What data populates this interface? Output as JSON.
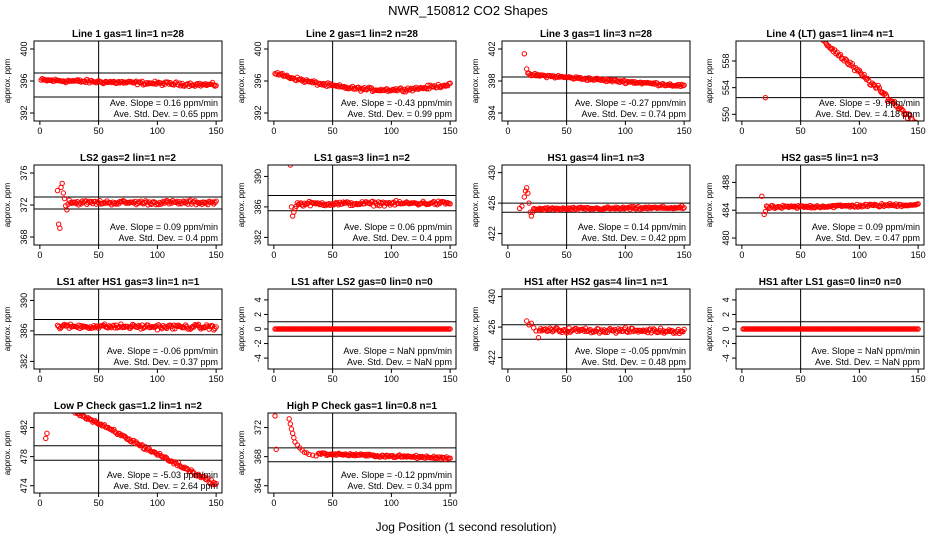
{
  "figure": {
    "title": "NWR_150812  CO2 Shapes",
    "xlabel": "Jog Position (1 second resolution)"
  },
  "style": {
    "point_color": "#ff0000",
    "line_color": "#000000"
  },
  "chart_data": [
    {
      "type": "scatter",
      "title": "Line 1 gas=1 lin=1 n=28",
      "ylabel": "approx. ppm",
      "xlim": [
        -5,
        155
      ],
      "xticks": [
        0,
        50,
        100,
        150
      ],
      "ylim": [
        391,
        401
      ],
      "yticks": [
        392,
        396,
        400
      ],
      "vline": 50,
      "hlines": [
        397.0,
        394.0
      ],
      "slope_text": "Ave. Slope =  0.16  ppm/min",
      "sd_text": "Ave. Std. Dev. =  0.65  ppm",
      "series": [
        {
          "shape": "flat",
          "x_start": 1,
          "x_end": 150,
          "step": 1,
          "y_start": 396.1,
          "y_end": 395.5,
          "noise": 0.25
        }
      ]
    },
    {
      "type": "scatter",
      "title": "Line 2 gas=1 lin=2 n=28",
      "ylabel": "approx. ppm",
      "xlim": [
        -5,
        155
      ],
      "xticks": [
        0,
        50,
        100,
        150
      ],
      "ylim": [
        391,
        401
      ],
      "yticks": [
        392,
        396,
        400
      ],
      "vline": 50,
      "hlines": [],
      "slope_text": "Ave. Slope =  -0.43  ppm/min",
      "sd_text": "Ave. Std. Dev. =  0.99  ppm",
      "series": [
        {
          "shape": "dip",
          "x_start": 1,
          "x_end": 150,
          "step": 1,
          "y_start": 397.0,
          "y_end": 395.6,
          "y_mid": 395.0,
          "noise": 0.25
        }
      ]
    },
    {
      "type": "scatter",
      "title": "Line 3 gas=1 lin=3 n=28",
      "ylabel": "approx. ppm",
      "xlim": [
        -5,
        155
      ],
      "xticks": [
        0,
        50,
        100,
        150
      ],
      "ylim": [
        393,
        403
      ],
      "yticks": [
        394,
        398,
        402
      ],
      "vline": 50,
      "hlines": [
        398.5,
        396.5
      ],
      "slope_text": "Ave. Slope =  -0.27  ppm/min",
      "sd_text": "Ave. Std. Dev. =  0.74  ppm",
      "series": [
        {
          "shape": "points",
          "x": [
            14,
            16
          ],
          "y": [
            401.4,
            399.5
          ]
        },
        {
          "shape": "flat",
          "x_start": 17,
          "x_end": 150,
          "step": 1,
          "y_start": 398.8,
          "y_end": 397.4,
          "noise": 0.2
        }
      ]
    },
    {
      "type": "scatter",
      "title": "Line 4 (LT) gas=1 lin=4 n=1",
      "ylabel": "approx. ppm",
      "xlim": [
        -5,
        155
      ],
      "xticks": [
        0,
        50,
        100,
        150
      ],
      "ylim": [
        549,
        561
      ],
      "yticks": [
        550,
        554,
        558
      ],
      "vline": 50,
      "hlines": [
        555.5,
        552.5
      ],
      "slope_text": "Ave. Slope =  -9.  ppm/min",
      "sd_text": "Ave. Std. Dev. =  4.18  ppm",
      "series": [
        {
          "shape": "points",
          "x": [
            20
          ],
          "y": [
            552.5
          ]
        },
        {
          "shape": "flat",
          "x_start": 68,
          "x_end": 150,
          "step": 1,
          "y_start": 561.2,
          "y_end": 548.5,
          "noise": 0.5
        }
      ]
    },
    {
      "type": "scatter",
      "title": "LS2 gas=2 lin=1 n=2",
      "ylabel": "approx. ppm",
      "xlim": [
        -5,
        155
      ],
      "xticks": [
        0,
        50,
        100,
        150
      ],
      "ylim": [
        367,
        377
      ],
      "yticks": [
        368,
        372,
        376
      ],
      "vline": 50,
      "hlines": [
        373.0,
        371.5
      ],
      "slope_text": "Ave. Slope =  0.09  ppm/min",
      "sd_text": "Ave. Std. Dev. =  0.4  ppm",
      "series": [
        {
          "shape": "points",
          "x": [
            15,
            16,
            17,
            18,
            19,
            20,
            21,
            22,
            23,
            24,
            25
          ],
          "y": [
            373.8,
            369.6,
            369.1,
            374.2,
            374.7,
            373.5,
            372.8,
            371.9,
            371.4,
            372.1,
            372.6
          ]
        },
        {
          "shape": "flat",
          "x_start": 26,
          "x_end": 150,
          "step": 1,
          "y_start": 372.3,
          "y_end": 372.3,
          "noise": 0.3
        }
      ]
    },
    {
      "type": "scatter",
      "title": "LS1 gas=3 lin=1 n=2",
      "ylabel": "approx. ppm",
      "xlim": [
        -5,
        155
      ],
      "xticks": [
        0,
        50,
        100,
        150
      ],
      "ylim": [
        381,
        391.5
      ],
      "yticks": [
        382,
        386,
        390
      ],
      "vline": 50,
      "hlines": [
        387.5,
        385.5
      ],
      "slope_text": "Ave. Slope =  0.06  ppm/min",
      "sd_text": "Ave. Std. Dev. =  0.4  ppm",
      "series": [
        {
          "shape": "points",
          "x": [
            14,
            15,
            16,
            17,
            18
          ],
          "y": [
            391.5,
            386.0,
            384.8,
            385.3,
            385.8
          ]
        },
        {
          "shape": "flat",
          "x_start": 19,
          "x_end": 150,
          "step": 1,
          "y_start": 386.4,
          "y_end": 386.5,
          "noise": 0.3
        }
      ]
    },
    {
      "type": "scatter",
      "title": "HS1 gas=4 lin=1 n=3",
      "ylabel": "approx. ppm",
      "xlim": [
        -5,
        155
      ],
      "xticks": [
        0,
        50,
        100,
        150
      ],
      "ylim": [
        420.5,
        431
      ],
      "yticks": [
        422,
        426,
        430
      ],
      "vline": 50,
      "hlines": [
        426.0,
        424.8
      ],
      "slope_text": "Ave. Slope =  0.14  ppm/min",
      "sd_text": "Ave. Std. Dev. =  0.42  ppm",
      "series": [
        {
          "shape": "points",
          "x": [
            10,
            12,
            14,
            15,
            16,
            17,
            18,
            19,
            20,
            21
          ],
          "y": [
            425.3,
            425.6,
            426.8,
            427.6,
            428.0,
            427.3,
            426.0,
            424.8,
            424.3,
            424.8
          ]
        },
        {
          "shape": "flat",
          "x_start": 22,
          "x_end": 150,
          "step": 1,
          "y_start": 425.2,
          "y_end": 425.4,
          "noise": 0.2
        }
      ]
    },
    {
      "type": "scatter",
      "title": "HS2 gas=5 lin=1 n=3",
      "ylabel": "approx. ppm",
      "xlim": [
        -5,
        155
      ],
      "xticks": [
        0,
        50,
        100,
        150
      ],
      "ylim": [
        479,
        490.5
      ],
      "yticks": [
        480,
        484,
        488
      ],
      "vline": 50,
      "hlines": [
        485.8,
        483.6
      ],
      "slope_text": "Ave. Slope =  0.09  ppm/min",
      "sd_text": "Ave. Std. Dev. =  0.47  ppm",
      "series": [
        {
          "shape": "points",
          "x": [
            17,
            19,
            20
          ],
          "y": [
            486.0,
            483.4,
            483.8
          ]
        },
        {
          "shape": "flat",
          "x_start": 21,
          "x_end": 150,
          "step": 1,
          "y_start": 484.4,
          "y_end": 484.8,
          "noise": 0.25
        }
      ]
    },
    {
      "type": "scatter",
      "title": "LS1 after HS1 gas=3 lin=1 n=1",
      "ylabel": "approx. ppm",
      "xlim": [
        -5,
        155
      ],
      "xticks": [
        0,
        50,
        100,
        150
      ],
      "ylim": [
        381,
        391.5
      ],
      "yticks": [
        382,
        386,
        390
      ],
      "vline": 50,
      "hlines": [
        387.5,
        385.5
      ],
      "slope_text": "Ave. Slope =  -0.06  ppm/min",
      "sd_text": "Ave. Std. Dev. =  0.37  ppm",
      "series": [
        {
          "shape": "flat",
          "x_start": 15,
          "x_end": 150,
          "step": 1,
          "y_start": 386.6,
          "y_end": 386.5,
          "noise": 0.35
        }
      ]
    },
    {
      "type": "scatter",
      "title": "LS1 after LS2 gas=0 lin=0 n=0",
      "ylabel": "approx. ppm",
      "xlim": [
        -5,
        155
      ],
      "xticks": [
        0,
        50,
        100,
        150
      ],
      "ylim": [
        -5.5,
        5.5
      ],
      "yticks": [
        -4,
        -2,
        0,
        2,
        4
      ],
      "vline": 50,
      "hlines": [
        1,
        -1
      ],
      "slope_text": "Ave. Slope =  NaN  ppm/min",
      "sd_text": "Ave. Std. Dev. =  NaN  ppm",
      "series": [
        {
          "shape": "flat",
          "x_start": 1,
          "x_end": 150,
          "step": 1,
          "y_start": 0,
          "y_end": 0,
          "noise": 0
        }
      ]
    },
    {
      "type": "scatter",
      "title": "HS1 after HS2 gas=4 lin=1 n=1",
      "ylabel": "approx. ppm",
      "xlim": [
        -5,
        155
      ],
      "xticks": [
        0,
        50,
        100,
        150
      ],
      "ylim": [
        420.5,
        431
      ],
      "yticks": [
        422,
        426,
        430
      ],
      "vline": 50,
      "hlines": [
        426.3,
        424.4
      ],
      "slope_text": "Ave. Slope =  -0.05  ppm/min",
      "sd_text": "Ave. Std. Dev. =  0.48  ppm",
      "series": [
        {
          "shape": "points",
          "x": [
            16,
            18,
            20,
            22,
            24,
            26
          ],
          "y": [
            426.8,
            426.3,
            426.5,
            425.9,
            425.5,
            424.6
          ]
        },
        {
          "shape": "flat",
          "x_start": 27,
          "x_end": 150,
          "step": 1,
          "y_start": 425.6,
          "y_end": 425.5,
          "noise": 0.35
        }
      ]
    },
    {
      "type": "scatter",
      "title": "HS1 after LS1 gas=0 lin=0 n=0",
      "ylabel": "approx. ppm",
      "xlim": [
        -5,
        155
      ],
      "xticks": [
        0,
        50,
        100,
        150
      ],
      "ylim": [
        -5.5,
        5.5
      ],
      "yticks": [
        -4,
        -2,
        0,
        2,
        4
      ],
      "vline": 50,
      "hlines": [
        1,
        -1
      ],
      "slope_text": "Ave. Slope =  NaN  ppm/min",
      "sd_text": "Ave. Std. Dev. =  NaN  ppm",
      "series": [
        {
          "shape": "flat",
          "x_start": 1,
          "x_end": 150,
          "step": 1,
          "y_start": 0,
          "y_end": 0,
          "noise": 0
        }
      ]
    },
    {
      "type": "scatter",
      "title": "Low P Check gas=1.2 lin=1 n=2",
      "ylabel": "approx. ppm",
      "xlim": [
        -5,
        155
      ],
      "xticks": [
        0,
        50,
        100,
        150
      ],
      "ylim": [
        473,
        484
      ],
      "yticks": [
        474,
        478,
        482
      ],
      "vline": 50,
      "hlines": [
        479.5,
        477.5
      ],
      "slope_text": "Ave. Slope =  -5.03  ppm/min",
      "sd_text": "Ave. Std. Dev. =  2.64  ppm",
      "series": [
        {
          "shape": "points",
          "x": [
            5,
            6
          ],
          "y": [
            480.5,
            481.2
          ]
        },
        {
          "shape": "flat",
          "x_start": 30,
          "x_end": 150,
          "step": 1,
          "y_start": 484.2,
          "y_end": 474.2,
          "noise": 0.3
        }
      ]
    },
    {
      "type": "scatter",
      "title": "High P Check gas=1 lin=0.8 n=1",
      "ylabel": "approx. ppm",
      "xlim": [
        -5,
        155
      ],
      "xticks": [
        0,
        50,
        100,
        150
      ],
      "ylim": [
        363,
        374
      ],
      "yticks": [
        364,
        368,
        372
      ],
      "vline": 50,
      "hlines": [
        369.2,
        367.3
      ],
      "slope_text": "Ave. Slope =  -0.12  ppm/min",
      "sd_text": "Ave. Std. Dev. =  0.34  ppm",
      "series": [
        {
          "shape": "points",
          "x": [
            1,
            2,
            13,
            14,
            15,
            16,
            17,
            18,
            20,
            22,
            24,
            26,
            28,
            30,
            33,
            36
          ],
          "y": [
            373.6,
            369.0,
            373.2,
            372.5,
            371.8,
            371.2,
            370.6,
            370.0,
            369.6,
            369.2,
            368.9,
            368.6,
            368.5,
            368.3,
            368.2,
            368.1
          ]
        },
        {
          "shape": "flat",
          "x_start": 38,
          "x_end": 150,
          "step": 1,
          "y_start": 368.4,
          "y_end": 367.8,
          "noise": 0.2
        }
      ]
    }
  ]
}
